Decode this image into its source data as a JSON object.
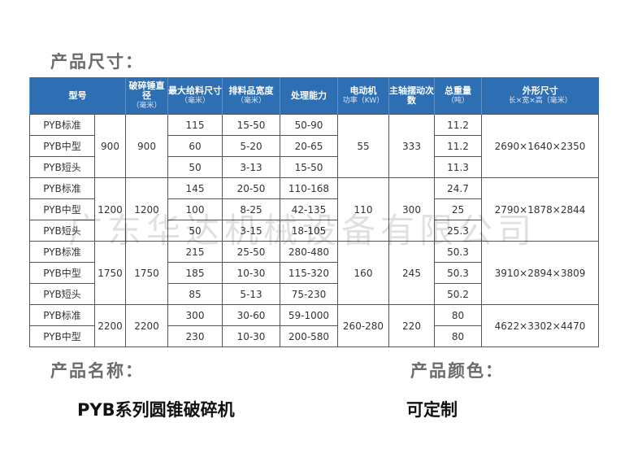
{
  "size_title": "产品尺寸：",
  "headers": [
    {
      "label": "型号",
      "sub": ""
    },
    {
      "label": "破碎锤直径",
      "sub": "（毫米）"
    },
    {
      "label": "最大给料尺寸",
      "sub": "（毫米）"
    },
    {
      "label": "排料品宽度",
      "sub": "（毫米）"
    },
    {
      "label": "处理能力",
      "sub": ""
    },
    {
      "label": "电动机",
      "sub": "功率（KW）"
    },
    {
      "label": "主轴摆动次数",
      "sub": ""
    },
    {
      "label": "总重量",
      "sub": "（吨）"
    },
    {
      "label": "外形尺寸",
      "sub": "长×宽×高（毫米）"
    }
  ],
  "groups": [
    {
      "size": "900",
      "diameter": "900",
      "power": "55",
      "swings": "333",
      "dims": "2690×1640×2350",
      "rows": [
        {
          "model": "PYB标准",
          "feed": "115",
          "discharge": "15-50",
          "capacity": "50-90",
          "weight": "11.2"
        },
        {
          "model": "PYB中型",
          "feed": "60",
          "discharge": "5-20",
          "capacity": "20-65",
          "weight": "11.2"
        },
        {
          "model": "PYB短头",
          "feed": "50",
          "discharge": "3-13",
          "capacity": "15-50",
          "weight": "11.3"
        }
      ]
    },
    {
      "size": "1200",
      "diameter": "1200",
      "power": "110",
      "swings": "300",
      "dims": "2790×1878×2844",
      "rows": [
        {
          "model": "PYB标准",
          "feed": "145",
          "discharge": "20-50",
          "capacity": "110-168",
          "weight": "24.7"
        },
        {
          "model": "PYB中型",
          "feed": "100",
          "discharge": "8-25",
          "capacity": "42-135",
          "weight": "25"
        },
        {
          "model": "PYB短头",
          "feed": "50",
          "discharge": "3-15",
          "capacity": "18-105",
          "weight": "25.3"
        }
      ]
    },
    {
      "size": "1750",
      "diameter": "1750",
      "power": "160",
      "swings": "245",
      "dims": "3910×2894×3809",
      "rows": [
        {
          "model": "PYB标准",
          "feed": "215",
          "discharge": "25-50",
          "capacity": "280-480",
          "weight": "50.3"
        },
        {
          "model": "PYB中型",
          "feed": "185",
          "discharge": "10-30",
          "capacity": "115-320",
          "weight": "50.3"
        },
        {
          "model": "PYB短头",
          "feed": "85",
          "discharge": "5-13",
          "capacity": "75-230",
          "weight": "50.2"
        }
      ]
    },
    {
      "size": "2200",
      "diameter": "2200",
      "power": "260-280",
      "swings": "220",
      "dims": "4622×3302×4470",
      "rows": [
        {
          "model": "PYB标准",
          "feed": "300",
          "discharge": "30-60",
          "capacity": "59-1000",
          "weight": "80"
        },
        {
          "model": "PYB中型",
          "feed": "230",
          "discharge": "10-30",
          "capacity": "200-580",
          "weight": "80"
        }
      ]
    }
  ],
  "watermark": "广东华达机械设备有限公司",
  "name_title": "产品名称：",
  "name_value": "PYB系列圆锥破碎机",
  "color_title": "产品颜色：",
  "color_value": "可定制",
  "colors": {
    "header_bg": "#2e6fb3"
  }
}
